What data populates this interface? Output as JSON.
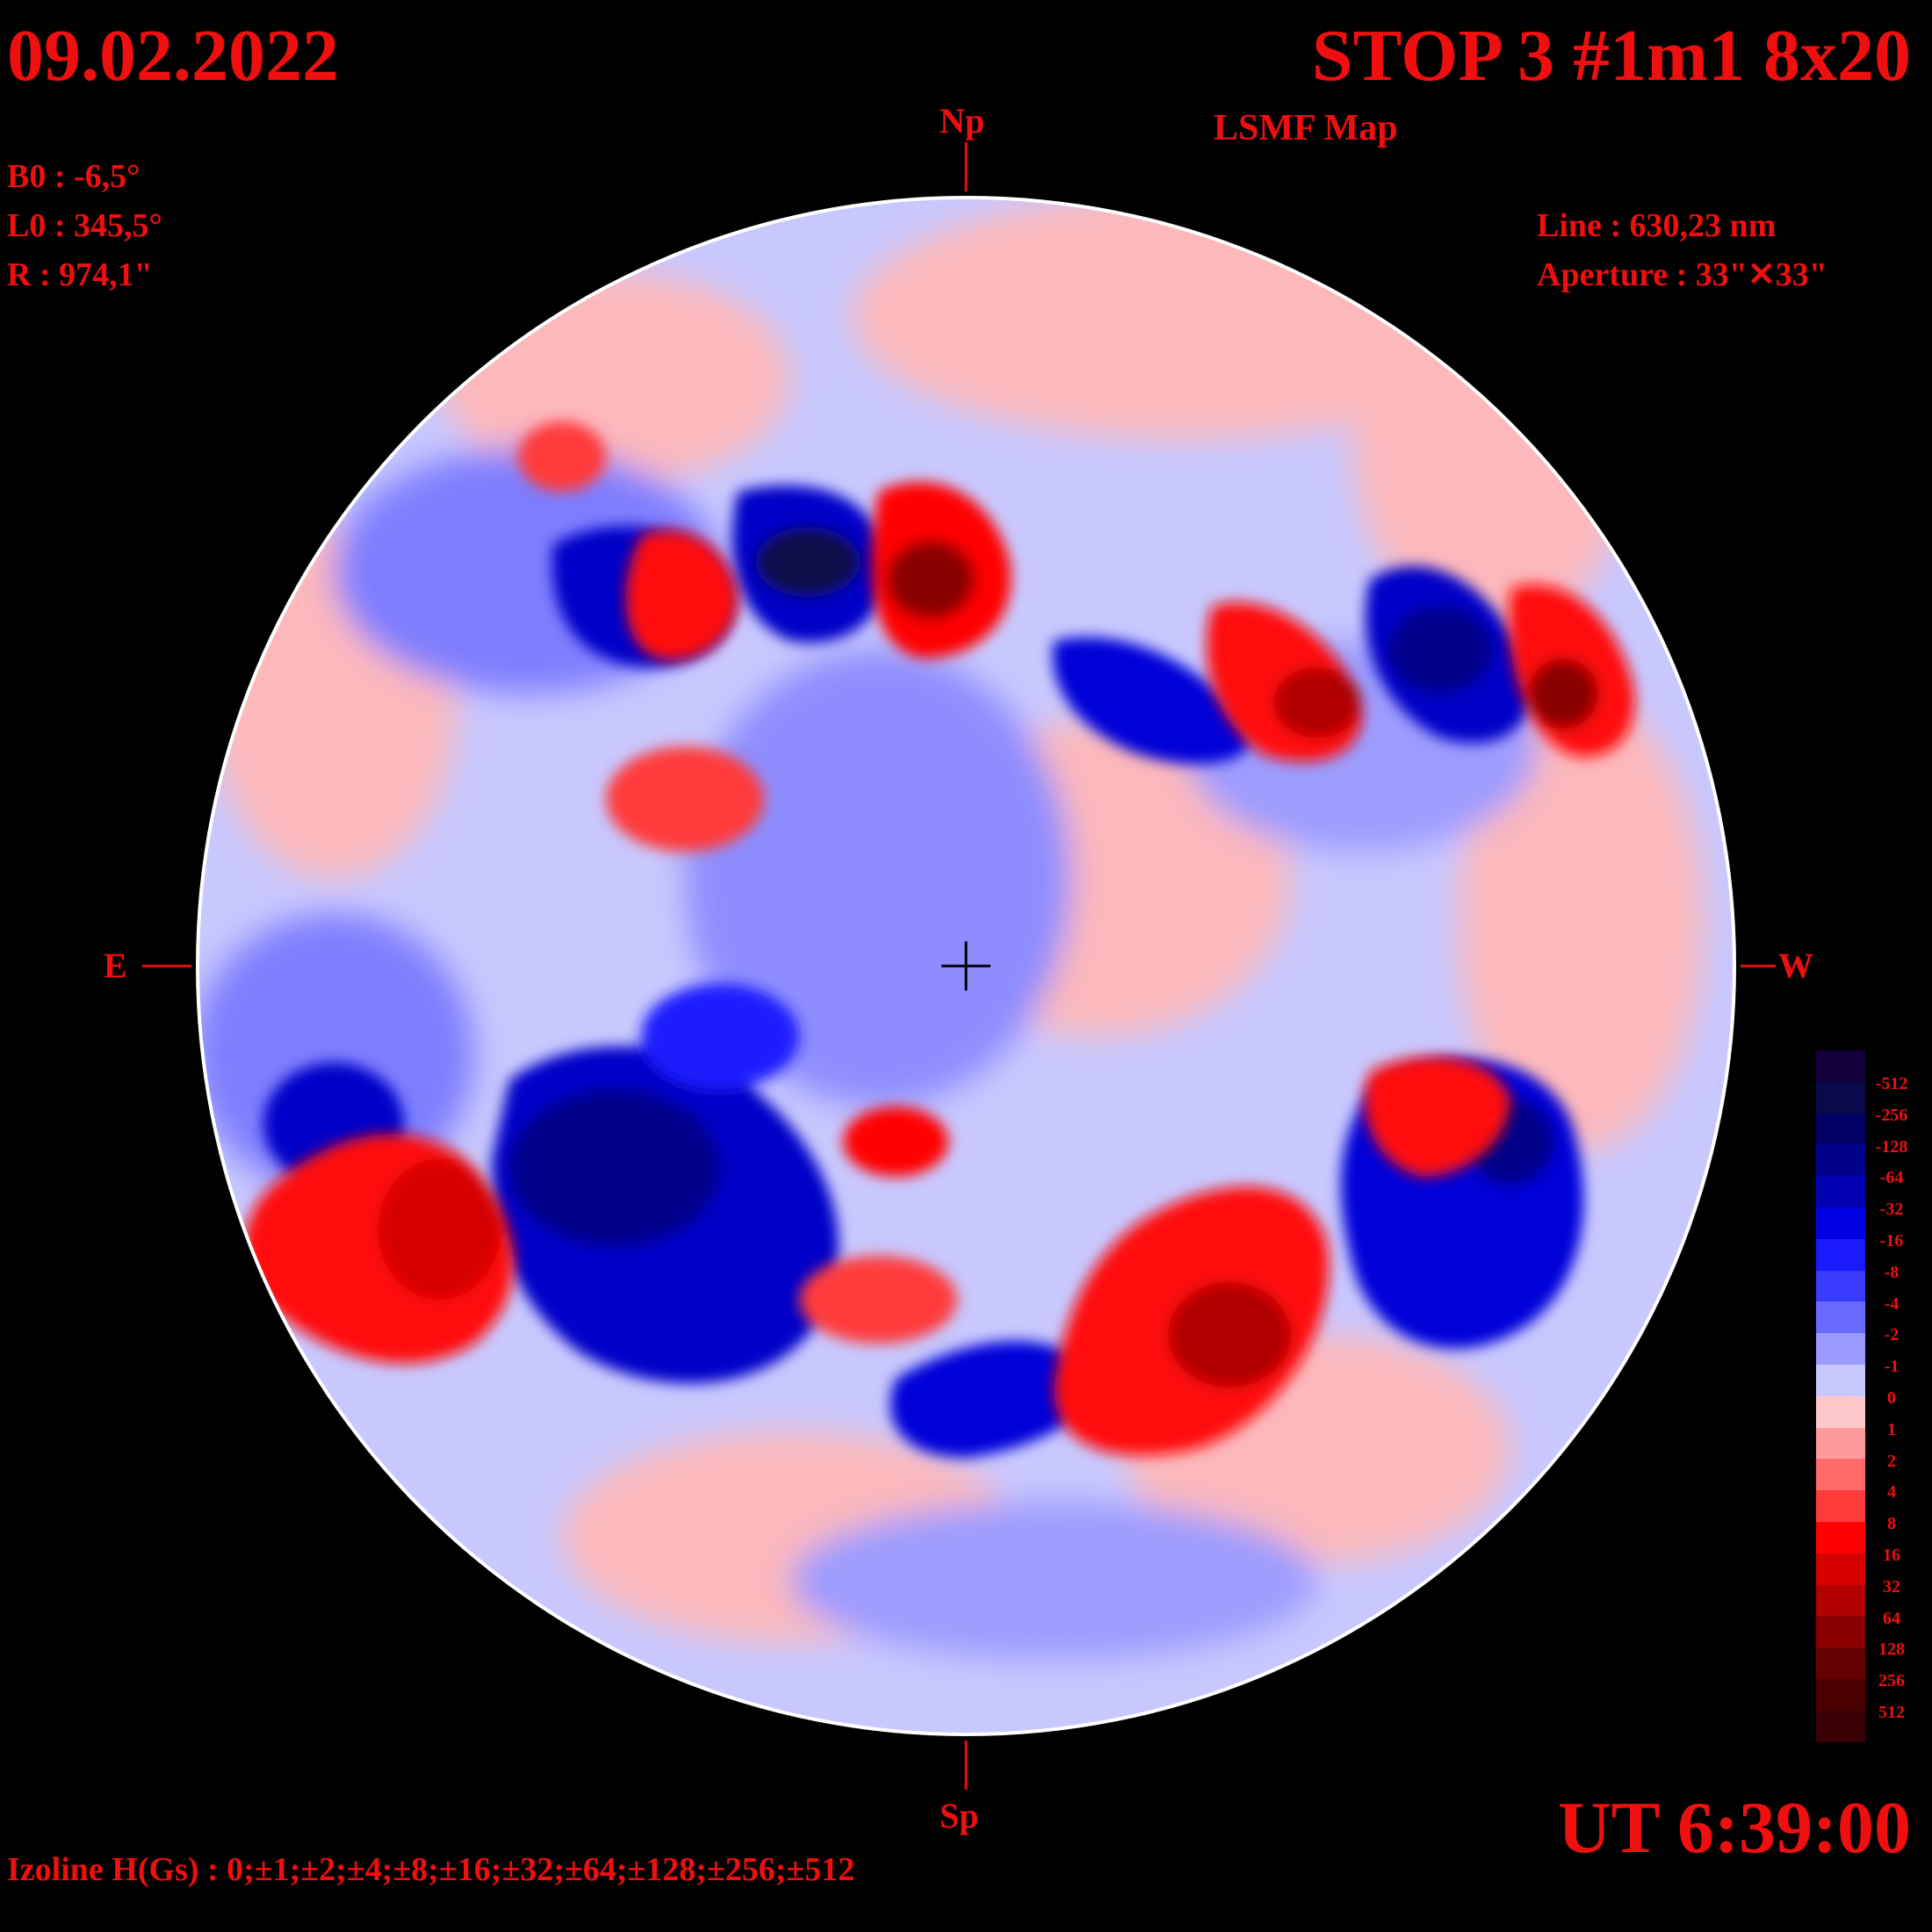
{
  "header": {
    "date": "09.02.2022",
    "title": "STOP 3 #1m1 8x20",
    "subtitle": "LSMF  Map"
  },
  "params": {
    "b0": "B0 : -6,5°",
    "l0": "L0 : 345,5°",
    "r": "R  : 974,1\""
  },
  "instrument": {
    "line": "Line :  630,23 nm",
    "aperture": "Aperture : 33\"✕33\""
  },
  "compass": {
    "north": "Np",
    "south": "Sp",
    "east": "E",
    "west": "W"
  },
  "time": "UT 6:39:00",
  "izoline": "Izoline H(Gs) : 0;±1;±2;±4;±8;±16;±32;±64;±128;±256;±512",
  "colorbar": {
    "labels": [
      "-512",
      "-256",
      "-128",
      "-64",
      "-32",
      "-16",
      "-8",
      "-4",
      "-2",
      "-1",
      "0",
      "1",
      "2",
      "4",
      "8",
      "16",
      "32",
      "64",
      "128",
      "256",
      "512"
    ],
    "colors": [
      "#14003a",
      "#0a0a4a",
      "#000066",
      "#00008a",
      "#0000b0",
      "#0000e0",
      "#1a1aff",
      "#3b3bff",
      "#6a6aff",
      "#9a9aff",
      "#c8c8ff",
      "#ffc8c8",
      "#ff9a9a",
      "#ff6a6a",
      "#ff3b3b",
      "#ff0000",
      "#d60000",
      "#b00000",
      "#8a0000",
      "#660000",
      "#4a0000",
      "#3a0006"
    ]
  },
  "colors": {
    "label": "#f00f0f",
    "background": "#000000",
    "positive": "#ff0000",
    "negative": "#0000e0",
    "neutral_pos": "#ffc8c8",
    "neutral_neg": "#c8c8ff"
  }
}
